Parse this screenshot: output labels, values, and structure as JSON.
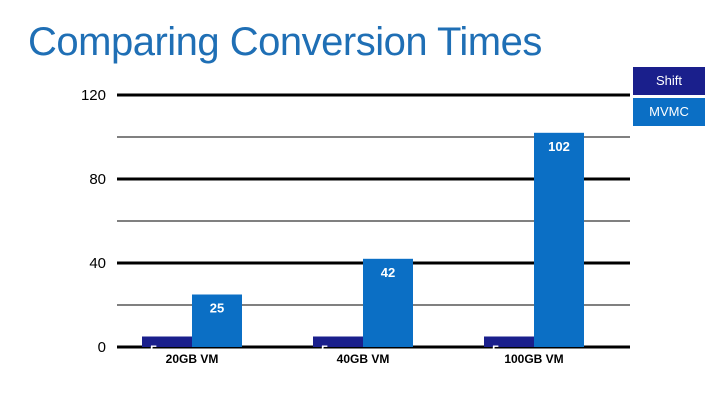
{
  "slide": {
    "title": "Comparing Conversion Times"
  },
  "chart_data": {
    "type": "bar",
    "title": "Comparing Conversion Times",
    "categories": [
      "20GB VM",
      "40GB VM",
      "100GB VM"
    ],
    "series": [
      {
        "name": "Shift",
        "values": [
          5,
          5,
          5
        ],
        "color": "#1a1f8c"
      },
      {
        "name": "MVMC",
        "values": [
          25,
          42,
          102
        ],
        "color": "#0b6fc5"
      }
    ],
    "ylim": [
      0,
      120
    ],
    "yticks": [
      0,
      40,
      80,
      120
    ],
    "gridlines": [
      0,
      20,
      40,
      60,
      80,
      100,
      120
    ],
    "xlabel": "",
    "ylabel": "",
    "legend_position": "top-right"
  }
}
